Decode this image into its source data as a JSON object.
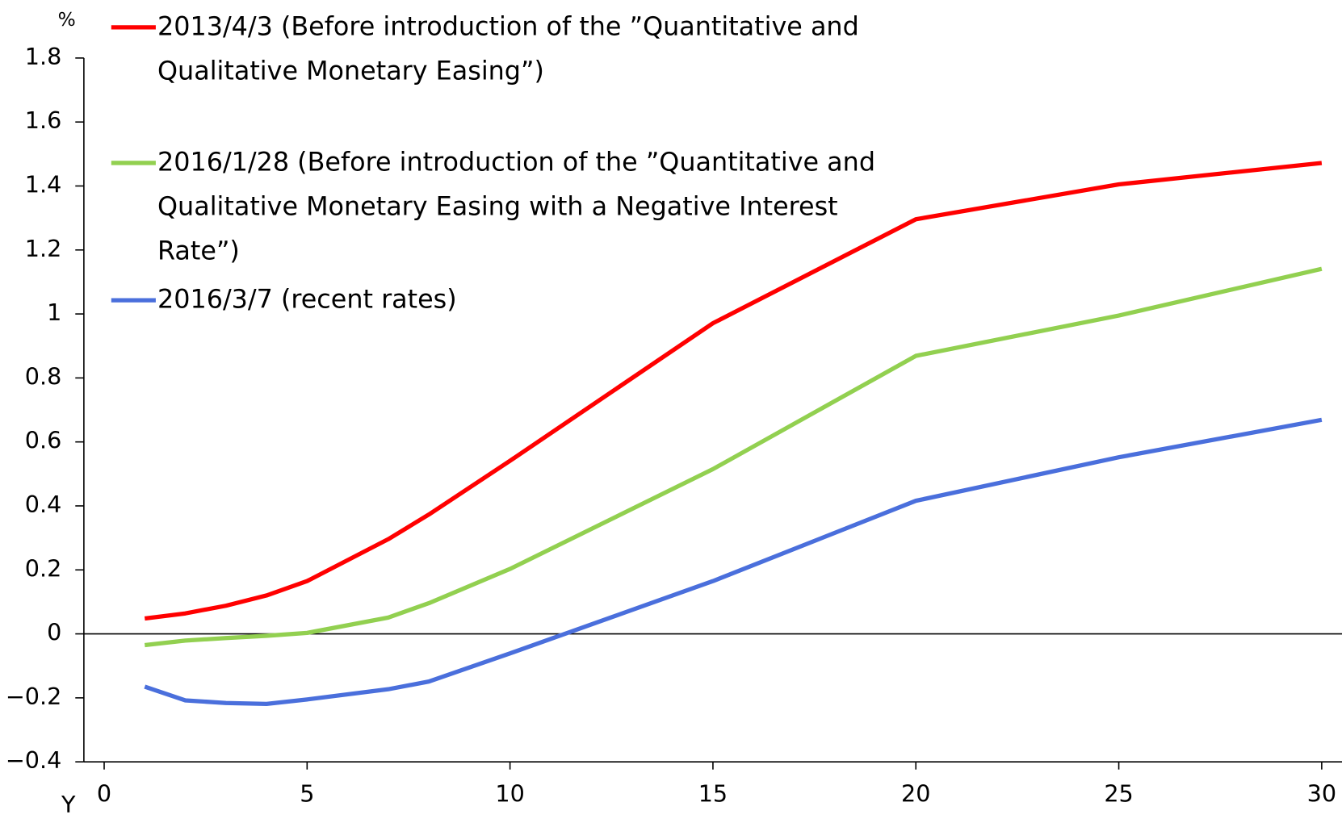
{
  "chart_data": {
    "type": "line",
    "y_unit": "%",
    "x_unit": "Y",
    "x": [
      1,
      2,
      3,
      4,
      5,
      7,
      8,
      10,
      15,
      20,
      25,
      30
    ],
    "series": [
      {
        "name": "2013/4/3 (Before introduction of the ”Quantitative and Qualitative Monetary Easing”)",
        "color": "#ff0000",
        "values": [
          0.048,
          0.064,
          0.088,
          0.12,
          0.165,
          0.296,
          0.373,
          0.541,
          0.971,
          1.296,
          1.405,
          1.472
        ]
      },
      {
        "name": "2016/1/28 (Before introduction of the ”Quantitative and Qualitative Monetary Easing with a Negative Interest Rate”)",
        "color": "#92d050",
        "values": [
          -0.035,
          -0.021,
          -0.013,
          -0.006,
          0.003,
          0.051,
          0.096,
          0.203,
          0.515,
          0.869,
          0.995,
          1.141
        ]
      },
      {
        "name": "2016/3/7 (recent rates)",
        "color": "#4a6fdc",
        "values": [
          -0.165,
          -0.208,
          -0.216,
          -0.219,
          -0.205,
          -0.173,
          -0.149,
          -0.061,
          0.165,
          0.416,
          0.552,
          0.669
        ]
      }
    ],
    "xlim": [
      -0.5,
      30.5
    ],
    "xticks": [
      0,
      5,
      10,
      15,
      20,
      25,
      30
    ],
    "ylim": [
      -0.4,
      1.8
    ],
    "yticks": [
      {
        "value": -0.4,
        "label": "−0.4"
      },
      {
        "value": -0.2,
        "label": "−0.2"
      },
      0,
      0.2,
      0.4,
      0.6,
      0.8,
      1,
      1.2,
      1.4,
      1.6,
      1.8
    ],
    "grid": false
  }
}
